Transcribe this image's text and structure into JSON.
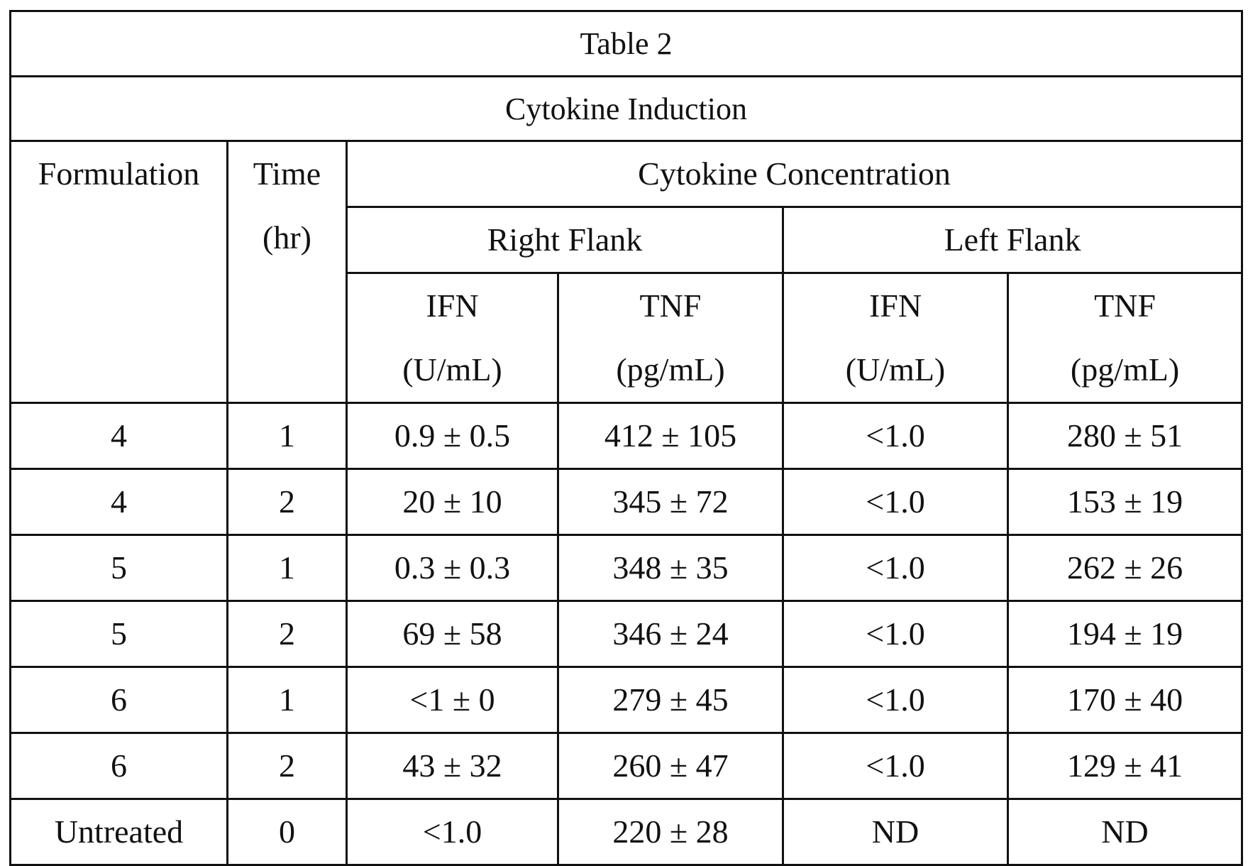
{
  "table": {
    "title": "Table 2",
    "subtitle": "Cytokine Induction",
    "headers": {
      "formulation": "Formulation",
      "time_line1": "Time",
      "time_line2": "(hr)",
      "concentration": "Cytokine Concentration",
      "right_flank": "Right Flank",
      "left_flank": "Left Flank",
      "right_ifn": "IFN",
      "right_ifn_unit": "(U/mL)",
      "right_tnf": "TNF",
      "right_tnf_unit": "(pg/mL)",
      "left_ifn": "IFN",
      "left_ifn_unit": "(U/mL)",
      "left_tnf": "TNF",
      "left_tnf_unit": "(pg/mL)"
    },
    "rows": [
      [
        "4",
        "1",
        "0.9 ± 0.5",
        "412 ± 105",
        "<1.0",
        "280 ± 51"
      ],
      [
        "4",
        "2",
        "20 ± 10",
        "345 ± 72",
        "<1.0",
        "153 ± 19"
      ],
      [
        "5",
        "1",
        "0.3 ± 0.3",
        "348 ± 35",
        "<1.0",
        "262 ± 26"
      ],
      [
        "5",
        "2",
        "69 ± 58",
        "346 ± 24",
        "<1.0",
        "194 ± 19"
      ],
      [
        "6",
        "1",
        "<1 ± 0",
        "279 ± 45",
        "<1.0",
        "170 ± 40"
      ],
      [
        "6",
        "2",
        "43 ± 32",
        "260 ± 47",
        "<1.0",
        "129 ± 41"
      ],
      [
        "Untreated",
        "0",
        "<1.0",
        "220 ± 28",
        "ND",
        "ND"
      ]
    ]
  }
}
